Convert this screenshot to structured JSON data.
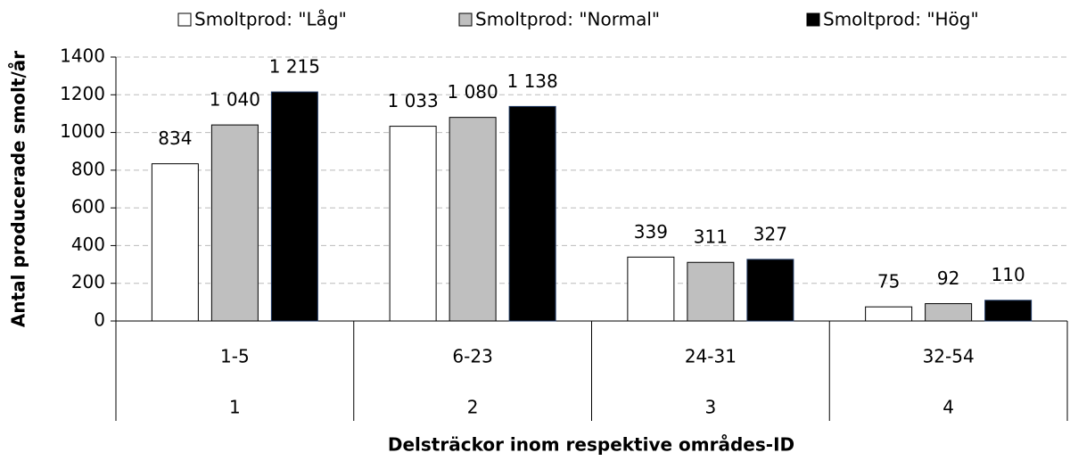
{
  "chart_data": {
    "type": "bar",
    "y_label": "Antal producerade smolt/år",
    "x_label": "Delsträckor inom respektive områdes-ID",
    "categories": [
      "1-5",
      "6-23",
      "24-31",
      "32-54"
    ],
    "groups": [
      "1",
      "2",
      "3",
      "4"
    ],
    "series": [
      {
        "name": "Smoltprod: \"Låg\"",
        "color": "#ffffff",
        "values": [
          834,
          1033,
          339,
          75
        ],
        "value_labels": [
          "834",
          "1 033",
          "339",
          "75"
        ]
      },
      {
        "name": "Smoltprod: \"Normal\"",
        "color": "#bfbfbf",
        "values": [
          1040,
          1080,
          311,
          92
        ],
        "value_labels": [
          "1 040",
          "1 080",
          "311",
          "92"
        ]
      },
      {
        "name": "Smoltprod: \"Hög\"",
        "color": "#000000",
        "values": [
          1215,
          1138,
          327,
          110
        ],
        "value_labels": [
          "1 215",
          "1 138",
          "327",
          "110"
        ]
      }
    ],
    "ylim": [
      0,
      1400
    ],
    "yticks": [
      0,
      200,
      400,
      600,
      800,
      1000,
      1200,
      1400
    ],
    "grid": true,
    "legend": "top"
  }
}
